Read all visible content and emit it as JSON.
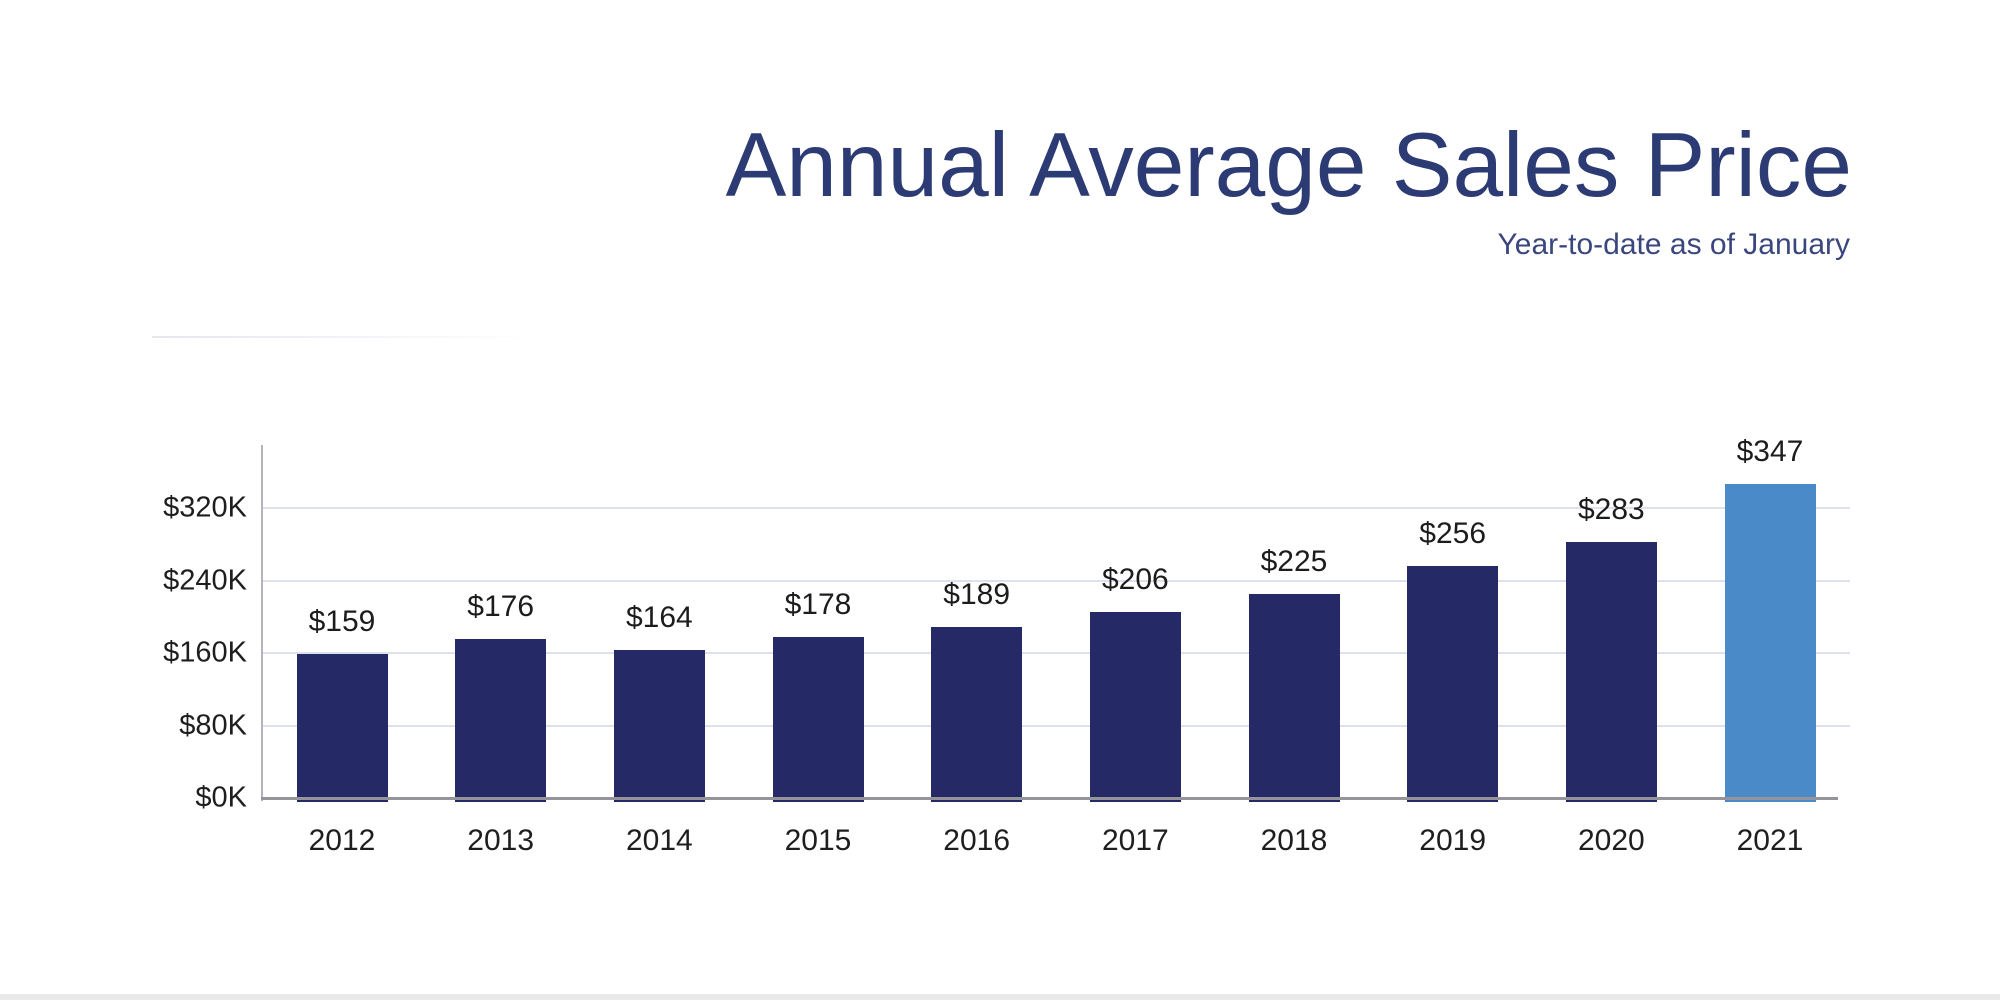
{
  "header": {
    "title": "Annual Average Sales Price",
    "subtitle": "Year-to-date as of January",
    "title_color": "#2c3b74",
    "subtitle_color": "#3a467e"
  },
  "chart_data": {
    "type": "bar",
    "title": "Annual Average Sales Price",
    "subtitle": "Year-to-date as of January",
    "categories": [
      "2012",
      "2013",
      "2014",
      "2015",
      "2016",
      "2017",
      "2018",
      "2019",
      "2020",
      "2021"
    ],
    "values": [
      159,
      176,
      164,
      178,
      189,
      206,
      225,
      256,
      283,
      347
    ],
    "data_labels": [
      "$159",
      "$176",
      "$164",
      "$178",
      "$189",
      "$206",
      "$225",
      "$256",
      "$283",
      "$347"
    ],
    "y_ticks": [
      "$0K",
      "$80K",
      "$160K",
      "$240K",
      "$320K"
    ],
    "y_tick_values": [
      0,
      80,
      160,
      240,
      320
    ],
    "ylim": [
      0,
      390
    ],
    "xlabel": "",
    "ylabel": "",
    "grid": true,
    "legend": "none",
    "bar_color": "#252a66",
    "highlight_color": "#4a8ac9",
    "highlight_index": 9,
    "gridline_color": "#dfe0ee",
    "axis_line_color": "#94949a",
    "tick_label_color": "#1e1e1e",
    "data_label_color": "#1c1c1c"
  }
}
